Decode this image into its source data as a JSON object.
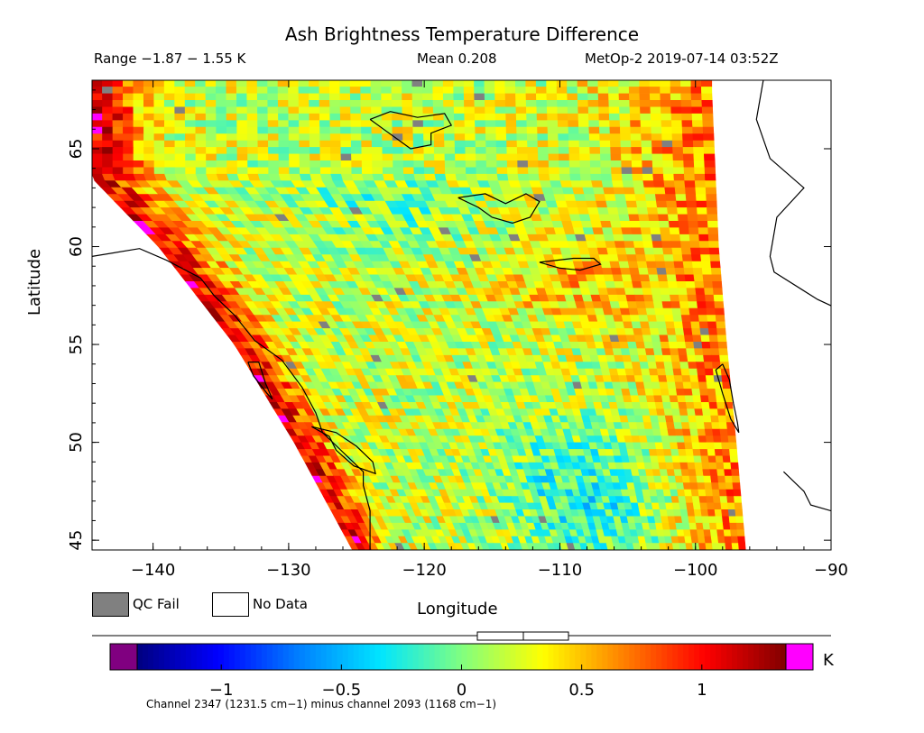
{
  "header": {
    "title": "Ash Brightness Temperature Difference",
    "range": "Range −1.87 − 1.55 K",
    "mean": "Mean 0.208",
    "satellite": "MetOp-2 2019-07-14 03:52Z"
  },
  "legend": {
    "qc_fail": "QC Fail",
    "no_data": "No Data",
    "unit": "K"
  },
  "footnote": "Channel 2347 (1231.5 cm−1) minus channel 2093 (1168 cm−1)",
  "colors": {
    "qc_fail": "#808080",
    "no_data": "#ffffff",
    "under": "#800080",
    "over": "#ff00ff",
    "coast": "#000000"
  },
  "chart_data": {
    "type": "heatmap",
    "title": "Ash Brightness Temperature Difference",
    "xlabel": "Longitude",
    "ylabel": "Latitude",
    "xlim": [
      -144.5,
      -90
    ],
    "ylim": [
      44.5,
      68.5
    ],
    "x_ticks": [
      -140,
      -130,
      -120,
      -110,
      -100,
      -90
    ],
    "y_ticks": [
      45,
      50,
      55,
      60,
      65
    ],
    "colorbar": {
      "range": [
        -1.35,
        1.35
      ],
      "ticks": [
        -1,
        -0.5,
        0,
        0.5,
        1
      ],
      "unit": "K",
      "colors": [
        "#000080",
        "#0000ff",
        "#0080ff",
        "#00e5ff",
        "#80ff80",
        "#ffff00",
        "#ff8000",
        "#ff0000",
        "#800000"
      ]
    },
    "statistics": {
      "min": -1.87,
      "max": 1.55,
      "mean": 0.208
    },
    "swath": {
      "east_edge": [
        [
          68,
          -98.8
        ],
        [
          60,
          -98.3
        ],
        [
          55,
          -97.7
        ],
        [
          50,
          -97.0
        ],
        [
          44.5,
          -96.3
        ]
      ],
      "west_edge": [
        [
          68,
          -144.5
        ],
        [
          63.5,
          -144.5
        ],
        [
          60,
          -139.6
        ],
        [
          55,
          -134.0
        ],
        [
          50,
          -129.6
        ],
        [
          44.5,
          -125.3
        ]
      ]
    }
  }
}
